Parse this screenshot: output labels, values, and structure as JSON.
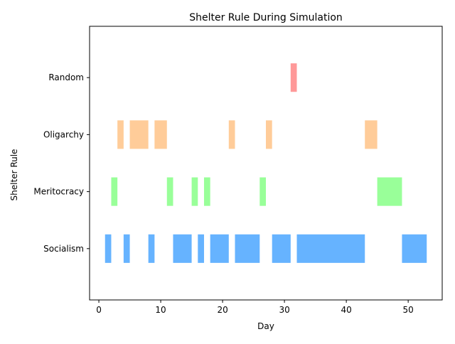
{
  "chart_data": {
    "type": "bar",
    "orientation": "horizontal-intervals",
    "title": "Shelter Rule During Simulation",
    "xlabel": "Day",
    "ylabel": "Shelter Rule",
    "xlim": [
      -1.5,
      55.5
    ],
    "ylim": [
      -0.9,
      3.9
    ],
    "x_ticks": [
      0,
      10,
      20,
      30,
      40,
      50
    ],
    "x_tick_labels": [
      "0",
      "10",
      "20",
      "30",
      "40",
      "50"
    ],
    "categories": [
      "Socialism",
      "Meritocracy",
      "Oligarchy",
      "Random"
    ],
    "grid": false,
    "legend": "none",
    "bar_height": 0.5,
    "series": [
      {
        "category": "Socialism",
        "color": "#66b3ff",
        "intervals": [
          [
            1,
            2
          ],
          [
            4,
            5
          ],
          [
            8,
            9
          ],
          [
            12,
            15
          ],
          [
            16,
            17
          ],
          [
            18,
            21
          ],
          [
            22,
            26
          ],
          [
            28,
            31
          ],
          [
            32,
            43
          ],
          [
            49,
            53
          ]
        ]
      },
      {
        "category": "Meritocracy",
        "color": "#99ff99",
        "intervals": [
          [
            2,
            3
          ],
          [
            11,
            12
          ],
          [
            15,
            16
          ],
          [
            17,
            18
          ],
          [
            26,
            27
          ],
          [
            45,
            49
          ]
        ]
      },
      {
        "category": "Oligarchy",
        "color": "#ffcc99",
        "intervals": [
          [
            3,
            4
          ],
          [
            5,
            8
          ],
          [
            9,
            11
          ],
          [
            21,
            22
          ],
          [
            27,
            28
          ],
          [
            43,
            45
          ]
        ]
      },
      {
        "category": "Random",
        "color": "#ff9999",
        "intervals": [
          [
            31,
            32
          ]
        ]
      }
    ]
  }
}
